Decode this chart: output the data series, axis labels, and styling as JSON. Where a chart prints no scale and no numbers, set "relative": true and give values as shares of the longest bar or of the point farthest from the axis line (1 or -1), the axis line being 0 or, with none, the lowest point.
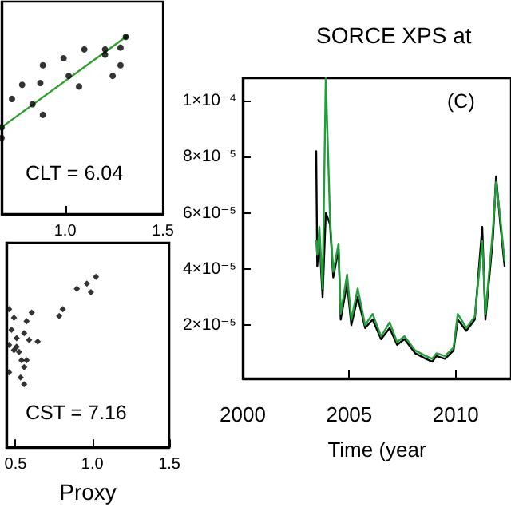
{
  "chart_data": [
    {
      "type": "scatter",
      "relative": true,
      "xlim": [
        0.675,
        1.5
      ],
      "xticks": [
        {
          "value": 1.0,
          "label": "1.0"
        },
        1.5
      ],
      "tick_labels": "x",
      "grid": false,
      "marker": "circle",
      "annotations": [
        "CLT = 6.04"
      ],
      "series": [
        {
          "color": "#000000",
          "x": [
            0.675,
            0.833,
            1.018,
            1.204,
            1.31,
            1.283,
            1.204,
            1.098,
            0.992,
            0.886,
            0.873,
            0.78,
            0.728,
            0.675,
            0.886,
            1.071,
            1.283,
            1.243
          ],
          "values": [
            0.49,
            0.62,
            0.78,
            0.93,
            1,
            0.94,
            0.9,
            0.93,
            0.88,
            0.84,
            0.74,
            0.73,
            0.65,
            0.43,
            0.56,
            0.72,
            0.84,
            0.78
          ]
        },
        {
          "type": "line",
          "color": "#2ca02c",
          "x": [
            0.675,
            1.31
          ],
          "values": [
            0.49,
            1
          ]
        }
      ]
    },
    {
      "type": "scatter",
      "relative": true,
      "xlim": [
        0.44,
        1.5
      ],
      "xticks": [
        0.5,
        {
          "value": 1.0,
          "label": "1.0"
        },
        1.5
      ],
      "tick_labels": "x",
      "grid": false,
      "marker": "diamond",
      "xlabel": "Proxy",
      "annotations": [
        "CST = 7.16"
      ],
      "series": [
        {
          "color": "#000000",
          "x": [
            0.458,
            0.49,
            0.474,
            0.507,
            0.458,
            0.49,
            0.523,
            0.572,
            0.556,
            0.588,
            0.539,
            0.572,
            0.556,
            0.533,
            0.556,
            0.605,
            0.644,
            0.784,
            0.807,
            0.899,
            0.964,
            0.99,
            1.023,
            0.458,
            0.507
          ],
          "values": [
            0.81,
            0.76,
            0.69,
            0.64,
            0.6,
            0.57,
            0.56,
            0.74,
            0.67,
            0.63,
            0.51,
            0.51,
            0.47,
            0.41,
            0.37,
            0.79,
            0.62,
            0.77,
            0.81,
            0.93,
            0.96,
            0.91,
            1,
            0.44,
            0.59
          ]
        }
      ]
    },
    {
      "type": "line",
      "title": "SORCE XPS at",
      "xlabel": "Time (year",
      "xlim": [
        2000,
        2012.6
      ],
      "xticks": [
        2000,
        2005,
        2010
      ],
      "ylim": [
        1e-06,
        0.000108
      ],
      "grid": false,
      "marker": "none",
      "annotations": [
        "(C)"
      ],
      "yticks": [
        {
          "value": 2e-05,
          "label": "2×10⁻⁵"
        },
        {
          "value": 4e-05,
          "label": "4×10⁻⁵"
        },
        {
          "value": 6e-05,
          "label": "6×10⁻⁵"
        },
        {
          "value": 8e-05,
          "label": "8×10⁻⁵"
        },
        {
          "value": 0.0001,
          "label": "1×10⁻⁴"
        }
      ],
      "x": [
        2003.45,
        2003.5,
        2003.6,
        2003.75,
        2003.9,
        2004.1,
        2004.25,
        2004.5,
        2004.6,
        2004.9,
        2005.1,
        2005.4,
        2005.75,
        2006.1,
        2006.5,
        2006.9,
        2007.25,
        2007.6,
        2008.1,
        2008.6,
        2008.9,
        2009.1,
        2009.5,
        2009.9,
        2010.1,
        2010.5,
        2010.9,
        2011.25,
        2011.4,
        2011.75,
        2011.9,
        2012.1,
        2012.3
      ],
      "series": [
        {
          "color": "#000000",
          "values": [
            8.2e-05,
            4.1e-05,
            5.1e-05,
            3e-05,
            6e-05,
            5.6e-05,
            3.7e-05,
            4.7e-05,
            2.2e-05,
            3.5e-05,
            2e-05,
            3e-05,
            1.9e-05,
            2.2e-05,
            1.5e-05,
            1.9e-05,
            1.3e-05,
            1.5e-05,
            1e-05,
            8e-06,
            7e-06,
            9e-06,
            8e-06,
            1.1e-05,
            2.2e-05,
            1.8e-05,
            2.2e-05,
            5.5e-05,
            2.2e-05,
            5.1e-05,
            7.3e-05,
            5.6e-05,
            4.1e-05
          ]
        },
        {
          "color": "#1f9e3a",
          "values": [
            5e-05,
            4.5e-05,
            5.5e-05,
            3.3e-05,
            0.000108,
            5.8e-05,
            3.9e-05,
            4.9e-05,
            2.4e-05,
            3.8e-05,
            2.2e-05,
            3.3e-05,
            2e-05,
            2.4e-05,
            1.6e-05,
            2.1e-05,
            1.4e-05,
            1.6e-05,
            1.1e-05,
            9e-06,
            8e-06,
            1e-05,
            9e-06,
            1.2e-05,
            2.4e-05,
            1.9e-05,
            2.3e-05,
            5e-05,
            2.4e-05,
            5.4e-05,
            7.1e-05,
            5.8e-05,
            4.3e-05
          ]
        }
      ]
    }
  ]
}
